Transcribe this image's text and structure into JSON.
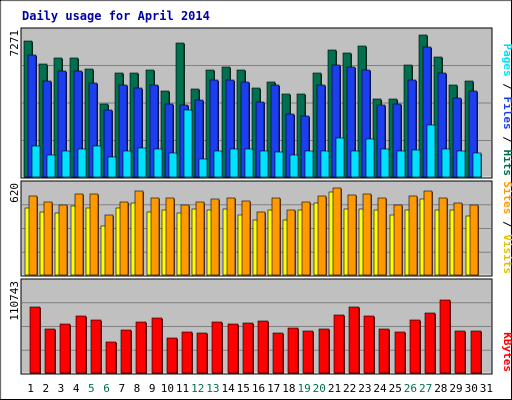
{
  "chart_data": [
    {
      "type": "bar",
      "title": "Daily usage for April 2014",
      "categories": [
        "1",
        "2",
        "3",
        "4",
        "5",
        "6",
        "7",
        "8",
        "9",
        "10",
        "11",
        "12",
        "13",
        "14",
        "15",
        "16",
        "17",
        "18",
        "19",
        "20",
        "21",
        "22",
        "23",
        "24",
        "25",
        "26",
        "27",
        "28",
        "29",
        "30",
        "31"
      ],
      "weekend_days": [
        "5",
        "6",
        "12",
        "13",
        "19",
        "20",
        "26",
        "27"
      ],
      "ymax_label": "7271",
      "ylim": [
        0,
        7271
      ],
      "legend": [
        "Pages",
        "Files",
        "Hits"
      ],
      "series": [
        {
          "name": "Hits",
          "color": "#007050",
          "values": [
            6950,
            5810,
            6090,
            6090,
            5540,
            3760,
            5300,
            5300,
            5500,
            4380,
            6860,
            4520,
            5500,
            5630,
            5500,
            4580,
            4880,
            4250,
            4250,
            5300,
            6500,
            6330,
            6690,
            4010,
            4010,
            5760,
            7271,
            6130,
            4730,
            4920,
            0
          ]
        },
        {
          "name": "Files",
          "color": "#1c3ef0",
          "values": [
            6260,
            4900,
            5430,
            5430,
            4820,
            3440,
            4710,
            4580,
            4710,
            3750,
            3690,
            3960,
            4970,
            4970,
            4840,
            3820,
            4710,
            3250,
            3120,
            4710,
            5760,
            5630,
            5500,
            3690,
            3750,
            4970,
            6680,
            5300,
            4050,
            4380,
            0
          ]
        },
        {
          "name": "Pages",
          "color": "#00e0ff",
          "values": [
            1600,
            1110,
            1330,
            1430,
            1600,
            1030,
            1330,
            1500,
            1430,
            1240,
            3440,
            930,
            1330,
            1430,
            1430,
            1330,
            1260,
            1130,
            1330,
            1330,
            2010,
            1330,
            1960,
            1430,
            1330,
            1360,
            2650,
            1430,
            1330,
            1240,
            0
          ]
        }
      ]
    },
    {
      "type": "bar",
      "ymax_label": "620",
      "ylim": [
        0,
        620
      ],
      "legend": [
        "Sites",
        "Visits"
      ],
      "series": [
        {
          "name": "Visits",
          "color": "#ffff00",
          "values": [
            480,
            450,
            440,
            490,
            480,
            350,
            480,
            510,
            450,
            460,
            440,
            470,
            460,
            470,
            430,
            390,
            460,
            390,
            460,
            510,
            590,
            470,
            470,
            460,
            430,
            460,
            540,
            460,
            460,
            420,
            0
          ]
        },
        {
          "name": "Sites",
          "color": "#ff9900",
          "values": [
            560,
            520,
            500,
            580,
            580,
            430,
            520,
            600,
            550,
            550,
            500,
            520,
            540,
            550,
            530,
            450,
            550,
            460,
            520,
            560,
            620,
            570,
            580,
            550,
            500,
            560,
            600,
            550,
            510,
            500,
            0
          ]
        }
      ]
    },
    {
      "type": "bar",
      "ymax_label": "110743",
      "ylim": [
        0,
        110743
      ],
      "legend": [
        "KBytes"
      ],
      "series": [
        {
          "name": "KBytes",
          "color": "#ff0000",
          "values": [
            84000,
            56000,
            63000,
            72000,
            67000,
            40000,
            55000,
            65000,
            70000,
            45000,
            52000,
            51000,
            65000,
            62000,
            64000,
            66000,
            51000,
            57000,
            53000,
            56000,
            74000,
            84000,
            72000,
            56000,
            52000,
            67000,
            76000,
            93000,
            53000,
            53000,
            0
          ]
        }
      ]
    }
  ]
}
